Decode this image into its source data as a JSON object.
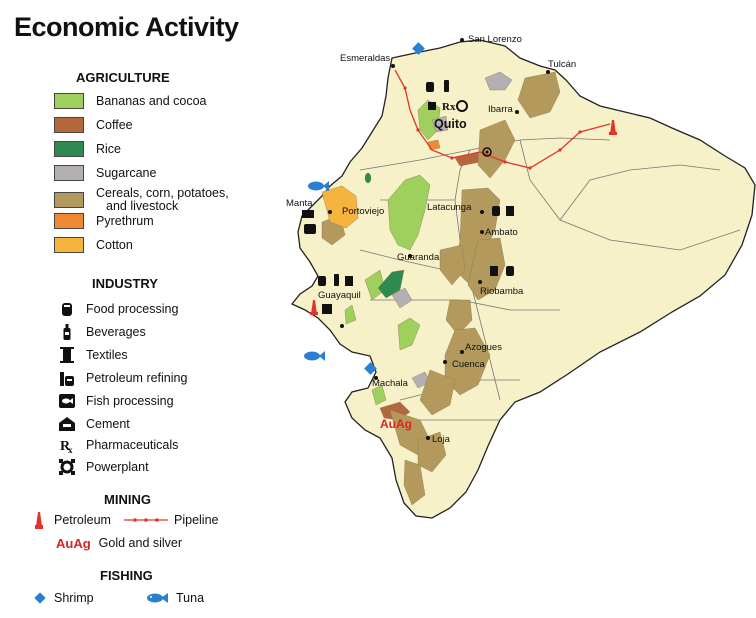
{
  "title": "Economic Activity",
  "colors": {
    "land": "#f6f1c8",
    "bananas": "#9fcf5c",
    "coffee": "#b4673a",
    "rice": "#2f8a52",
    "sugarcane": "#b3afb3",
    "cereals": "#b39a5c",
    "pyrethrum": "#ef8a33",
    "cotton": "#f4b43d",
    "pipeline": "#e0362a",
    "petroleum": "#e0362a",
    "fishing": "#2a7fd0"
  },
  "legend": {
    "agriculture": {
      "heading": "AGRICULTURE",
      "items": [
        {
          "label": "Bananas and cocoa",
          "color": "#9fcf5c"
        },
        {
          "label": "Coffee",
          "color": "#b4673a"
        },
        {
          "label": "Rice",
          "color": "#2f8a52"
        },
        {
          "label": "Sugarcane",
          "color": "#b3afb3"
        },
        {
          "label": "Cereals, corn, potatoes,",
          "label2": "and livestock",
          "color": "#b39a5c"
        },
        {
          "label": "Pyrethrum",
          "color": "#ef8a33"
        },
        {
          "label": "Cotton",
          "color": "#f4b43d"
        }
      ]
    },
    "industry": {
      "heading": "INDUSTRY",
      "items": [
        {
          "label": "Food processing",
          "icon": "food-processing-icon"
        },
        {
          "label": "Beverages",
          "icon": "beverages-icon"
        },
        {
          "label": "Textiles",
          "icon": "textiles-icon"
        },
        {
          "label": "Petroleum refining",
          "icon": "petroleum-refining-icon"
        },
        {
          "label": "Fish processing",
          "icon": "fish-processing-icon"
        },
        {
          "label": "Cement",
          "icon": "cement-icon"
        },
        {
          "label": "Pharmaceuticals",
          "icon": "pharmaceuticals-icon"
        },
        {
          "label": "Powerplant",
          "icon": "powerplant-icon"
        }
      ]
    },
    "mining": {
      "heading": "MINING",
      "petroleum": "Petroleum",
      "pipeline": "Pipeline",
      "gold_symbol": "AuAg",
      "gold": "Gold and silver"
    },
    "fishing": {
      "heading": "FISHING",
      "shrimp": "Shrimp",
      "tuna": "Tuna"
    }
  },
  "map": {
    "cities": [
      {
        "name": "San Lorenzo"
      },
      {
        "name": "Esmeraldas"
      },
      {
        "name": "Tulcán"
      },
      {
        "name": "Ibarra"
      },
      {
        "name": "Quito"
      },
      {
        "name": "Manta"
      },
      {
        "name": "Portoviejo"
      },
      {
        "name": "Latacunga"
      },
      {
        "name": "Ambato"
      },
      {
        "name": "Guaranda"
      },
      {
        "name": "Riobamba"
      },
      {
        "name": "Guayaquil"
      },
      {
        "name": "Azogues"
      },
      {
        "name": "Cuenca"
      },
      {
        "name": "Machala"
      },
      {
        "name": "Loja"
      }
    ],
    "gold_label": "AuAg"
  }
}
